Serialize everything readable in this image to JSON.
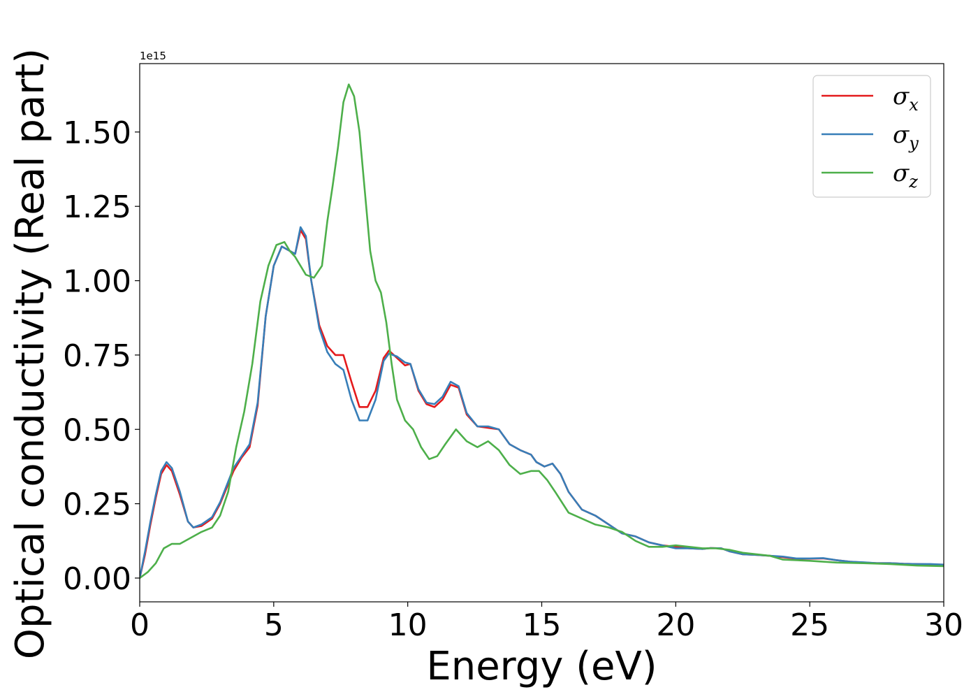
{
  "chart_data": {
    "type": "line",
    "xlabel": "Energy (eV)",
    "ylabel": "Optical conductivity (Real part)",
    "y_offset_label": "1e15",
    "xlim": [
      0,
      30
    ],
    "ylim": [
      -0.08,
      1.73
    ],
    "xticks": [
      0,
      5,
      10,
      15,
      20,
      25,
      30
    ],
    "xtick_labels": [
      "0",
      "5",
      "10",
      "15",
      "20",
      "25",
      "30"
    ],
    "yticks": [
      0.0,
      0.25,
      0.5,
      0.75,
      1.0,
      1.25,
      1.5
    ],
    "ytick_labels": [
      "0.00",
      "0.25",
      "0.50",
      "0.75",
      "1.00",
      "1.25",
      "1.50"
    ],
    "grid": false,
    "legend_position": "top-right",
    "series": [
      {
        "name": "σx",
        "legend_symbol": "σ",
        "legend_subscript": "x",
        "color": "#e41a1c",
        "x": [
          0,
          0.2,
          0.4,
          0.6,
          0.8,
          1.0,
          1.2,
          1.5,
          1.8,
          2.0,
          2.3,
          2.7,
          3.0,
          3.5,
          3.8,
          4.1,
          4.4,
          4.7,
          5.0,
          5.3,
          5.6,
          5.8,
          6.0,
          6.2,
          6.4,
          6.7,
          7.0,
          7.3,
          7.6,
          7.9,
          8.2,
          8.5,
          8.8,
          9.1,
          9.3,
          9.6,
          9.9,
          10.1,
          10.4,
          10.7,
          11.0,
          11.3,
          11.6,
          11.9,
          12.2,
          12.6,
          13.0,
          13.4,
          13.8,
          14.2,
          14.6,
          14.8,
          15.1,
          15.4,
          15.7,
          16.0,
          16.5,
          17.0,
          17.5,
          18.0,
          18.5,
          19.0,
          19.5,
          20.0,
          20.5,
          21.0,
          21.3,
          21.7,
          22.0,
          22.5,
          23.0,
          23.5,
          24.0,
          24.5,
          25.0,
          25.5,
          26.0,
          26.5,
          27.0,
          27.5,
          28.0,
          28.5,
          29.0,
          29.5,
          30.0
        ],
        "y": [
          0.0,
          0.08,
          0.18,
          0.27,
          0.35,
          0.38,
          0.36,
          0.28,
          0.19,
          0.17,
          0.175,
          0.2,
          0.25,
          0.36,
          0.405,
          0.44,
          0.58,
          0.88,
          1.05,
          1.115,
          1.1,
          1.09,
          1.17,
          1.14,
          1.0,
          0.85,
          0.78,
          0.75,
          0.75,
          0.66,
          0.575,
          0.575,
          0.63,
          0.74,
          0.765,
          0.74,
          0.715,
          0.72,
          0.63,
          0.585,
          0.575,
          0.6,
          0.65,
          0.64,
          0.55,
          0.51,
          0.505,
          0.5,
          0.45,
          0.43,
          0.415,
          0.39,
          0.375,
          0.385,
          0.35,
          0.29,
          0.23,
          0.21,
          0.18,
          0.15,
          0.14,
          0.12,
          0.11,
          0.105,
          0.1,
          0.098,
          0.101,
          0.1,
          0.09,
          0.08,
          0.078,
          0.075,
          0.07,
          0.065,
          0.065,
          0.066,
          0.06,
          0.055,
          0.052,
          0.05,
          0.05,
          0.048,
          0.047,
          0.046,
          0.045
        ]
      },
      {
        "name": "σy",
        "legend_symbol": "σ",
        "legend_subscript": "y",
        "color": "#377eb8",
        "x": [
          0,
          0.2,
          0.4,
          0.6,
          0.8,
          1.0,
          1.2,
          1.5,
          1.8,
          2.0,
          2.3,
          2.7,
          3.0,
          3.5,
          3.8,
          4.1,
          4.4,
          4.7,
          5.0,
          5.3,
          5.6,
          5.8,
          6.0,
          6.2,
          6.4,
          6.7,
          7.0,
          7.3,
          7.6,
          7.9,
          8.2,
          8.5,
          8.8,
          9.1,
          9.3,
          9.6,
          9.9,
          10.1,
          10.4,
          10.7,
          11.0,
          11.3,
          11.6,
          11.9,
          12.2,
          12.6,
          13.0,
          13.4,
          13.8,
          14.2,
          14.6,
          14.8,
          15.1,
          15.4,
          15.7,
          16.0,
          16.5,
          17.0,
          17.5,
          18.0,
          18.5,
          19.0,
          19.5,
          20.0,
          20.5,
          21.0,
          21.3,
          21.7,
          22.0,
          22.5,
          23.0,
          23.5,
          24.0,
          24.5,
          25.0,
          25.5,
          26.0,
          26.5,
          27.0,
          27.5,
          28.0,
          28.5,
          29.0,
          29.5,
          30.0
        ],
        "y": [
          0.0,
          0.09,
          0.19,
          0.28,
          0.36,
          0.39,
          0.37,
          0.29,
          0.19,
          0.17,
          0.18,
          0.205,
          0.255,
          0.37,
          0.41,
          0.45,
          0.59,
          0.88,
          1.05,
          1.115,
          1.1,
          1.09,
          1.18,
          1.15,
          1.0,
          0.84,
          0.76,
          0.72,
          0.7,
          0.6,
          0.53,
          0.53,
          0.6,
          0.73,
          0.755,
          0.745,
          0.725,
          0.72,
          0.635,
          0.59,
          0.585,
          0.61,
          0.66,
          0.645,
          0.555,
          0.51,
          0.51,
          0.5,
          0.45,
          0.43,
          0.415,
          0.39,
          0.375,
          0.385,
          0.35,
          0.29,
          0.23,
          0.21,
          0.18,
          0.15,
          0.14,
          0.12,
          0.11,
          0.1,
          0.1,
          0.098,
          0.101,
          0.1,
          0.09,
          0.08,
          0.078,
          0.075,
          0.072,
          0.066,
          0.066,
          0.067,
          0.06,
          0.055,
          0.053,
          0.05,
          0.05,
          0.048,
          0.047,
          0.047,
          0.045
        ]
      },
      {
        "name": "σz",
        "legend_symbol": "σ",
        "legend_subscript": "z",
        "color": "#4daf4a",
        "x": [
          0,
          0.3,
          0.6,
          0.9,
          1.2,
          1.5,
          1.8,
          2.0,
          2.3,
          2.7,
          3.0,
          3.3,
          3.6,
          3.9,
          4.2,
          4.5,
          4.8,
          5.1,
          5.4,
          5.6,
          5.8,
          6.0,
          6.2,
          6.5,
          6.8,
          7.0,
          7.2,
          7.4,
          7.6,
          7.8,
          8.0,
          8.2,
          8.4,
          8.6,
          8.8,
          9.0,
          9.2,
          9.4,
          9.6,
          9.9,
          10.2,
          10.5,
          10.8,
          11.1,
          11.4,
          11.8,
          12.2,
          12.6,
          13.0,
          13.4,
          13.8,
          14.2,
          14.6,
          14.9,
          15.2,
          15.5,
          16.0,
          16.5,
          17.0,
          17.5,
          18.0,
          18.5,
          19.0,
          19.5,
          20.0,
          20.5,
          21.0,
          21.5,
          22.0,
          22.5,
          23.0,
          23.5,
          24.0,
          25.0,
          26.0,
          27.0,
          28.0,
          29.0,
          30.0
        ],
        "y": [
          0.0,
          0.02,
          0.05,
          0.1,
          0.115,
          0.115,
          0.13,
          0.14,
          0.155,
          0.17,
          0.21,
          0.29,
          0.44,
          0.56,
          0.72,
          0.93,
          1.05,
          1.12,
          1.13,
          1.1,
          1.08,
          1.05,
          1.02,
          1.01,
          1.05,
          1.2,
          1.32,
          1.45,
          1.6,
          1.66,
          1.62,
          1.5,
          1.3,
          1.1,
          1.0,
          0.96,
          0.86,
          0.72,
          0.6,
          0.53,
          0.5,
          0.44,
          0.4,
          0.41,
          0.45,
          0.5,
          0.46,
          0.44,
          0.46,
          0.43,
          0.38,
          0.35,
          0.36,
          0.36,
          0.33,
          0.29,
          0.22,
          0.2,
          0.18,
          0.17,
          0.155,
          0.125,
          0.105,
          0.105,
          0.11,
          0.105,
          0.1,
          0.1,
          0.095,
          0.085,
          0.08,
          0.075,
          0.062,
          0.058,
          0.052,
          0.05,
          0.047,
          0.042,
          0.04
        ]
      }
    ]
  }
}
